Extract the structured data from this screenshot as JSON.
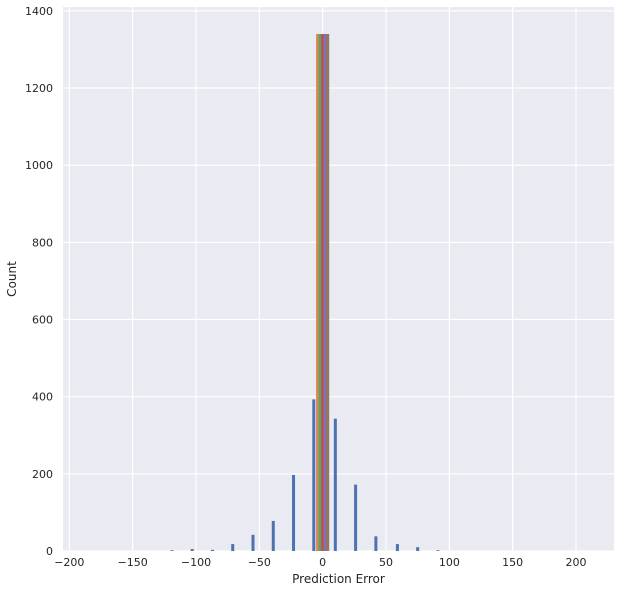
{
  "chart_data": {
    "type": "bar",
    "title": "",
    "xlabel": "Prediction Error",
    "ylabel": "Count",
    "xlim": [
      -205,
      230
    ],
    "ylim": [
      0,
      1410
    ],
    "xticks": [
      -200,
      -150,
      -100,
      -50,
      0,
      50,
      100,
      150,
      200
    ],
    "xtick_labels": [
      "−200",
      "−150",
      "−100",
      "−50",
      "0",
      "50",
      "100",
      "150",
      "200"
    ],
    "yticks": [
      0,
      200,
      400,
      600,
      800,
      1000,
      1200,
      1400
    ],
    "grid": true,
    "legend": "none",
    "series": [
      {
        "color": "#4c72b0",
        "bars": [
          {
            "x": -135,
            "y": 0
          },
          {
            "x": -119,
            "y": 2
          },
          {
            "x": -103,
            "y": 5
          },
          {
            "x": -87,
            "y": 3
          },
          {
            "x": -71,
            "y": 18
          },
          {
            "x": -55,
            "y": 42
          },
          {
            "x": -39,
            "y": 78
          },
          {
            "x": -23,
            "y": 197
          },
          {
            "x": -7,
            "y": 393
          },
          {
            "x": 10,
            "y": 343
          },
          {
            "x": 26,
            "y": 172
          },
          {
            "x": 42,
            "y": 38
          },
          {
            "x": 59,
            "y": 18
          },
          {
            "x": 75,
            "y": 10
          },
          {
            "x": 91,
            "y": 2
          }
        ]
      },
      {
        "color": "#dd8452",
        "bars": [
          {
            "x": -4,
            "y": 1340
          }
        ]
      },
      {
        "color": "#55a868",
        "bars": [
          {
            "x": -2,
            "y": 1340
          }
        ]
      },
      {
        "color": "#c44e52",
        "bars": [
          {
            "x": 0,
            "y": 1340
          }
        ]
      },
      {
        "color": "#8172b3",
        "bars": [
          {
            "x": 2,
            "y": 1340
          }
        ]
      },
      {
        "color": "#937860",
        "bars": [
          {
            "x": 4,
            "y": 1340
          }
        ]
      }
    ]
  }
}
